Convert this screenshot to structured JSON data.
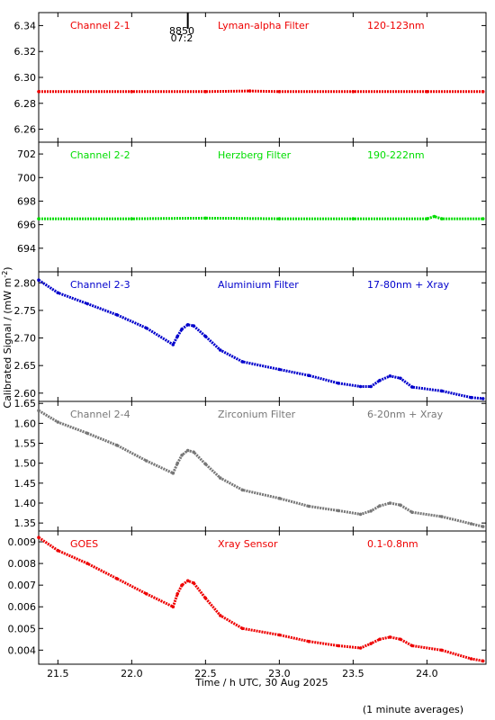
{
  "colors": {
    "red": "#ee0000",
    "green": "#00dd00",
    "blue": "#0000cc",
    "grey": "#777777",
    "axis": "#000000"
  },
  "labels": {
    "ylabel": "Calibrated Signal / (mW m",
    "ylabel_sup": "-2",
    "ylabel_close": ")",
    "xlabel": "Time / h UTC, 30 Aug 2025",
    "footnote": "(1 minute averages)",
    "marker_top": "8850",
    "marker_bottom": "07:2"
  },
  "chart_data": [
    {
      "type": "scatter",
      "panel": 1,
      "channel": "Channel 2-1",
      "filter": "Lyman-alpha Filter",
      "band": "120-123nm",
      "color": "red",
      "ylim": [
        6.25,
        6.35
      ],
      "yticks": [
        6.26,
        6.28,
        6.3,
        6.32,
        6.34
      ],
      "ytick_labels": [
        "6.26",
        "6.28",
        "6.30",
        "6.32",
        "6.34"
      ],
      "x": [
        21.37,
        22.0,
        22.5,
        22.8,
        23.0,
        23.5,
        24.0,
        24.38
      ],
      "y": [
        6.289,
        6.289,
        6.289,
        6.2895,
        6.289,
        6.289,
        6.289,
        6.289
      ]
    },
    {
      "type": "scatter",
      "panel": 2,
      "channel": "Channel 2-2",
      "filter": "Herzberg Filter",
      "band": "190-222nm",
      "color": "green",
      "ylim": [
        692,
        703
      ],
      "yticks": [
        694,
        696,
        698,
        700,
        702
      ],
      "ytick_labels": [
        "694",
        "696",
        "698",
        "700",
        "702"
      ],
      "x": [
        21.37,
        22.0,
        22.5,
        23.0,
        23.5,
        24.0,
        24.05,
        24.1,
        24.38
      ],
      "y": [
        696.5,
        696.5,
        696.55,
        696.5,
        696.5,
        696.5,
        696.7,
        696.5,
        696.5
      ]
    },
    {
      "type": "scatter",
      "panel": 3,
      "channel": "Channel 2-3",
      "filter": "Aluminium Filter",
      "band": "17-80nm + Xray",
      "color": "blue",
      "ylim": [
        2.585,
        2.82
      ],
      "yticks": [
        2.6,
        2.65,
        2.7,
        2.75,
        2.8
      ],
      "ytick_labels": [
        "2.60",
        "2.65",
        "2.70",
        "2.75",
        "2.80"
      ],
      "x": [
        21.37,
        21.5,
        21.7,
        21.9,
        22.1,
        22.28,
        22.31,
        22.34,
        22.38,
        22.42,
        22.5,
        22.6,
        22.75,
        23.0,
        23.2,
        23.4,
        23.55,
        23.62,
        23.68,
        23.75,
        23.82,
        23.9,
        24.1,
        24.3,
        24.38
      ],
      "y": [
        2.805,
        2.782,
        2.762,
        2.742,
        2.718,
        2.688,
        2.703,
        2.716,
        2.724,
        2.722,
        2.703,
        2.678,
        2.657,
        2.643,
        2.632,
        2.618,
        2.612,
        2.612,
        2.623,
        2.631,
        2.627,
        2.611,
        2.604,
        2.592,
        2.59
      ]
    },
    {
      "type": "scatter",
      "panel": 4,
      "channel": "Channel 2-4",
      "filter": "Zirconium Filter",
      "band": "6-20nm + Xray",
      "color": "grey",
      "ylim": [
        1.33,
        1.655
      ],
      "yticks": [
        1.35,
        1.4,
        1.45,
        1.5,
        1.55,
        1.6,
        1.65
      ],
      "ytick_labels": [
        "1.35",
        "1.40",
        "1.45",
        "1.50",
        "1.55",
        "1.60",
        "1.65"
      ],
      "x": [
        21.37,
        21.5,
        21.7,
        21.9,
        22.1,
        22.28,
        22.31,
        22.34,
        22.38,
        22.42,
        22.5,
        22.6,
        22.75,
        23.0,
        23.2,
        23.4,
        23.55,
        23.62,
        23.68,
        23.75,
        23.82,
        23.9,
        24.1,
        24.3,
        24.38
      ],
      "y": [
        1.632,
        1.603,
        1.575,
        1.545,
        1.506,
        1.475,
        1.5,
        1.52,
        1.532,
        1.528,
        1.498,
        1.463,
        1.433,
        1.412,
        1.392,
        1.381,
        1.372,
        1.38,
        1.393,
        1.4,
        1.395,
        1.377,
        1.366,
        1.348,
        1.341
      ]
    },
    {
      "type": "scatter",
      "panel": 5,
      "channel": "GOES",
      "filter": "Xray Sensor",
      "band": "0.1-0.8nm",
      "color": "red",
      "ylim": [
        0.00335,
        0.0095
      ],
      "yticks": [
        0.004,
        0.005,
        0.006,
        0.007,
        0.008,
        0.009
      ],
      "ytick_labels": [
        "0.004",
        "0.005",
        "0.006",
        "0.007",
        "0.008",
        "0.009"
      ],
      "x": [
        21.37,
        21.5,
        21.7,
        21.9,
        22.1,
        22.28,
        22.31,
        22.34,
        22.38,
        22.42,
        22.5,
        22.6,
        22.75,
        23.0,
        23.2,
        23.4,
        23.55,
        23.62,
        23.68,
        23.75,
        23.82,
        23.9,
        24.1,
        24.3,
        24.38
      ],
      "y": [
        0.0092,
        0.0086,
        0.008,
        0.0073,
        0.0066,
        0.006,
        0.0066,
        0.007,
        0.0072,
        0.0071,
        0.0064,
        0.0056,
        0.005,
        0.0047,
        0.0044,
        0.0042,
        0.0041,
        0.0043,
        0.0045,
        0.0046,
        0.0045,
        0.0042,
        0.004,
        0.0036,
        0.0035
      ]
    }
  ],
  "xaxis": {
    "xlim": [
      21.37,
      24.4
    ],
    "ticks": [
      21.5,
      22.0,
      22.5,
      23.0,
      23.5,
      24.0
    ],
    "tick_labels": [
      "21.5",
      "22.0",
      "22.5",
      "23.0",
      "23.5",
      "24.0"
    ],
    "marker_x": 22.38
  }
}
